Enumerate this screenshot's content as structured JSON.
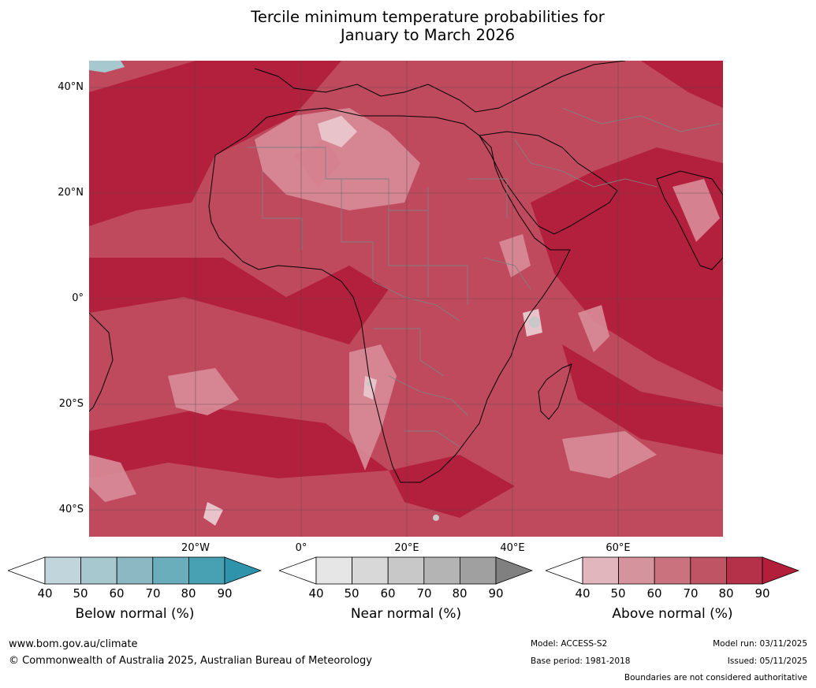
{
  "title": {
    "line1": "Tercile minimum temperature probabilities for",
    "line2": "January to March 2026"
  },
  "map": {
    "lat_labels": [
      "40°N",
      "20°N",
      "0°",
      "20°S",
      "40°S"
    ],
    "lon_labels": [
      "20°W",
      "0°",
      "20°E",
      "40°E",
      "60°E"
    ]
  },
  "colorbars": [
    {
      "label": "Below normal (%)",
      "ticks": [
        "40",
        "50",
        "60",
        "70",
        "80",
        "90"
      ],
      "colors": [
        "#ffffff",
        "#c0d6dc",
        "#a8c8cf",
        "#8cb8c3",
        "#6aaebb",
        "#48a0b3",
        "#2f94ab"
      ]
    },
    {
      "label": "Near normal (%)",
      "ticks": [
        "40",
        "50",
        "60",
        "70",
        "80",
        "90"
      ],
      "colors": [
        "#ffffff",
        "#e6e6e6",
        "#d8d8d8",
        "#c8c8c8",
        "#b4b4b4",
        "#a0a0a0",
        "#808080"
      ]
    },
    {
      "label": "Above normal (%)",
      "ticks": [
        "40",
        "50",
        "60",
        "70",
        "80",
        "90"
      ],
      "colors": [
        "#ffffff",
        "#e2b6bd",
        "#d5939d",
        "#ca737f",
        "#bf5464",
        "#b53049",
        "#b11f3a"
      ]
    }
  ],
  "footer": {
    "website": "www.bom.gov.au/climate",
    "copyright": "© Commonwealth of Australia 2025, Australian Bureau of Meteorology",
    "model": "Model: ACCESS-S2",
    "base_period": "Base period: 1981-2018",
    "model_run": "Model run: 03/11/2025",
    "issued": "Issued: 05/11/2025",
    "disclaimer": "Boundaries are not considered authoritative"
  }
}
